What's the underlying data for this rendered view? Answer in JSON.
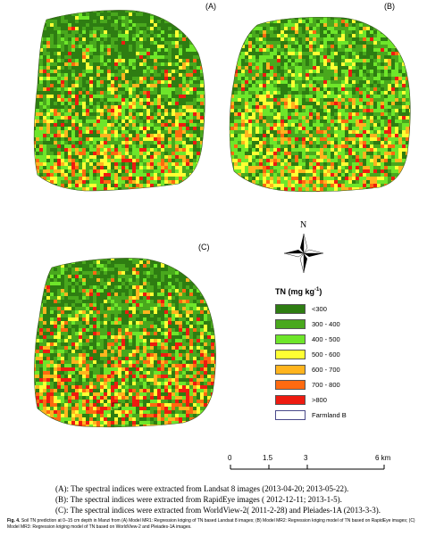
{
  "panels": [
    {
      "label": "(A)"
    },
    {
      "label": "(B)"
    },
    {
      "label": "(C)"
    }
  ],
  "north": {
    "label": "N"
  },
  "legend": {
    "title_main": "TN (mg kg",
    "title_sup": "-1",
    "title_end": ")",
    "items": [
      {
        "label": "<300",
        "color": "#2e7d12"
      },
      {
        "label": "300 - 400",
        "color": "#49a81d"
      },
      {
        "label": "400 - 500",
        "color": "#6ee62a"
      },
      {
        "label": "500 - 600",
        "color": "#ffff33"
      },
      {
        "label": "600 - 700",
        "color": "#ffb41e"
      },
      {
        "label": "700 - 800",
        "color": "#ff6a10"
      },
      {
        "label": ">800",
        "color": "#ee1b10"
      },
      {
        "label": "Farmland B",
        "color": "#ffffff"
      }
    ]
  },
  "scale_bar": {
    "ticks": [
      "0",
      "1.5",
      "3",
      "6 km"
    ]
  },
  "notes": [
    "(A): The spectral indices were extracted from Landsat 8 images (2013-04-20; 2013-05-22).",
    "(B): The spectral indices were extracted from RapidEye images ( 2012-12-11; 2013-1-5).",
    "(C): The spectral indices were extracted from WorldView-2( 2011-2-28) and Pleiades-1A (2013-3-3)."
  ],
  "caption": {
    "lead": "Fig. 4.",
    "text": " Soil TN prediction at 0–15 cm depth in Manzi from (A) Model MR1: Regression kriging of TN based Landsat 8 images; (B) Model MR2: Regression kriging model of TN based on RapidEye images; (C) Model MR3: Regression kriging model of TN based on WorldView-2 and Pleiades-1A images."
  }
}
